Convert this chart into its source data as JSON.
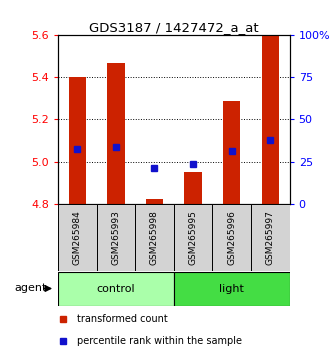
{
  "title": "GDS3187 / 1427472_a_at",
  "samples": [
    "GSM265984",
    "GSM265993",
    "GSM265998",
    "GSM265995",
    "GSM265996",
    "GSM265997"
  ],
  "groups": [
    "control",
    "control",
    "control",
    "light",
    "light",
    "light"
  ],
  "bar_bottom": 4.8,
  "bar_values": [
    5.4,
    5.47,
    4.82,
    4.95,
    5.29,
    5.6
  ],
  "percentile_values": [
    5.06,
    5.07,
    4.97,
    4.99,
    5.05,
    5.1
  ],
  "ylim_left": [
    4.8,
    5.6
  ],
  "ylim_right": [
    0,
    100
  ],
  "yticks_left": [
    4.8,
    5.0,
    5.2,
    5.4,
    5.6
  ],
  "yticks_right": [
    0,
    25,
    50,
    75,
    100
  ],
  "ytick_labels_right": [
    "0",
    "25",
    "50",
    "75",
    "100%"
  ],
  "bar_color": "#CC2200",
  "dot_color": "#1111CC",
  "bar_width": 0.45,
  "control_color": "#AAFFAA",
  "light_color": "#44DD44",
  "agent_label": "agent",
  "legend_bar_label": "transformed count",
  "legend_dot_label": "percentile rank within the sample",
  "grid_dotted_at": [
    5.0,
    5.2,
    5.4
  ]
}
